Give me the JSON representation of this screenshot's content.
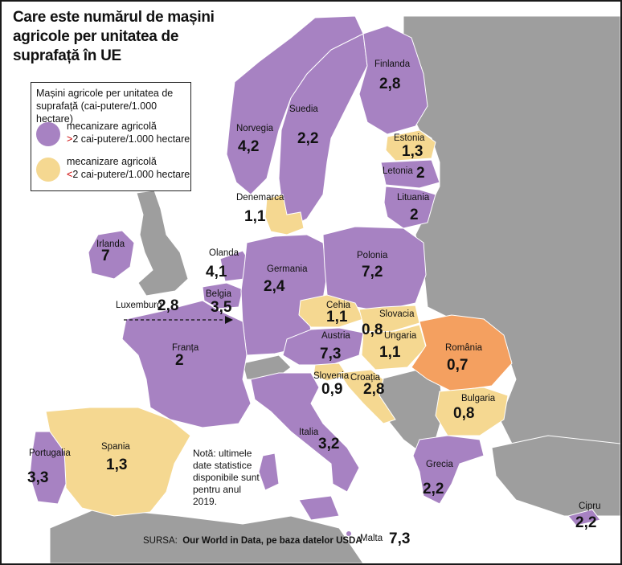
{
  "title": "Care este numărul de mașini agricole per unitatea de suprafață în UE",
  "legend": {
    "heading": "Mașini agricole per unitatea de suprafață (cai-putere/1.000 hectare)",
    "items": [
      {
        "label": "mecanizare agricolă",
        "symbol": ">",
        "condition": "2 cai-putere/1.000 hectare",
        "color": "#a782c2"
      },
      {
        "label": "mecanizare agricolă",
        "symbol": "<",
        "condition": "2 cai-putere/1.000 hectare",
        "color": "#f5d891"
      }
    ]
  },
  "colors": {
    "high": "#a782c2",
    "low": "#f5d891",
    "romania": "#f4a060",
    "non_eu": "#9e9e9e",
    "sea": "#ffffff"
  },
  "countries": [
    {
      "key": "finlanda",
      "name": "Finlanda",
      "value": "2,8"
    },
    {
      "key": "suedia",
      "name": "Suedia",
      "value": "2,2"
    },
    {
      "key": "norvegia",
      "name": "Norvegia",
      "value": "4,2"
    },
    {
      "key": "estonia",
      "name": "Estonia",
      "value": "1,3"
    },
    {
      "key": "letonia",
      "name": "Letonia",
      "value": "2"
    },
    {
      "key": "lituania",
      "name": "Lituania",
      "value": "2"
    },
    {
      "key": "denemarca",
      "name": "Denemarca",
      "value": "1,1"
    },
    {
      "key": "irlanda",
      "name": "Irlanda",
      "value": "7"
    },
    {
      "key": "olanda",
      "name": "Olanda",
      "value": "4,1"
    },
    {
      "key": "belgia",
      "name": "Belgia",
      "value": "3,5"
    },
    {
      "key": "luxemburg",
      "name": "Luxemburg",
      "value": "2,8"
    },
    {
      "key": "germania",
      "name": "Germania",
      "value": "2,4"
    },
    {
      "key": "polonia",
      "name": "Polonia",
      "value": "7,2"
    },
    {
      "key": "cehia",
      "name": "Cehia",
      "value": "1,1"
    },
    {
      "key": "slovacia",
      "name": "Slovacia",
      "value": "0,8"
    },
    {
      "key": "austria",
      "name": "Austria",
      "value": "7,3"
    },
    {
      "key": "ungaria",
      "name": "Ungaria",
      "value": "1,1"
    },
    {
      "key": "romania",
      "name": "România",
      "value": "0,7"
    },
    {
      "key": "franta",
      "name": "Franța",
      "value": "2"
    },
    {
      "key": "slovenia",
      "name": "Slovenia",
      "value": "0,9"
    },
    {
      "key": "croatia",
      "name": "Croația",
      "value": "2,8"
    },
    {
      "key": "bulgaria",
      "name": "Bulgaria",
      "value": "0,8"
    },
    {
      "key": "portugalia",
      "name": "Portugalia",
      "value": "3,3"
    },
    {
      "key": "spania",
      "name": "Spania",
      "value": "1,3"
    },
    {
      "key": "italia",
      "name": "Italia",
      "value": "3,2"
    },
    {
      "key": "grecia",
      "name": "Grecia",
      "value": "2,2"
    },
    {
      "key": "cipru",
      "name": "Cipru",
      "value": "2,2"
    },
    {
      "key": "malta",
      "name": "Malta",
      "value": "7,3"
    }
  ],
  "note": "Notă: ultimele date statistice disponibile sunt pentru anul 2019.",
  "source": {
    "prefix": "SURSA:",
    "text": "Our World in Data, pe baza datelor USDA"
  }
}
